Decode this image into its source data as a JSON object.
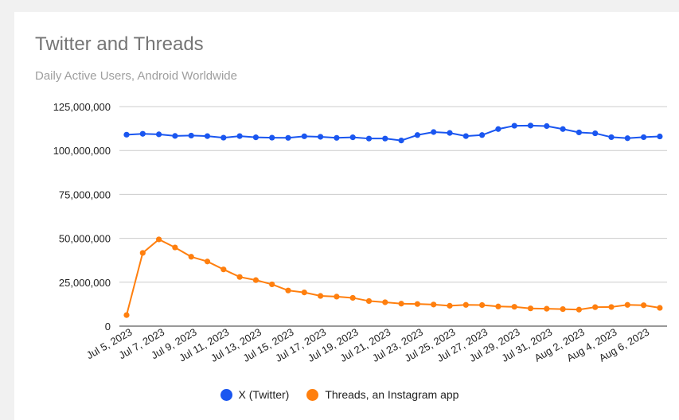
{
  "chart_data": {
    "type": "line",
    "title": "Twitter and Threads",
    "subtitle": "Daily Active Users, Android Worldwide",
    "xlabel": "",
    "ylabel": "",
    "ylim": [
      0,
      125000000
    ],
    "yticks": [
      "0",
      "25,000,000",
      "50,000,000",
      "75,000,000",
      "100,000,000",
      "125,000,000"
    ],
    "grid": true,
    "legend_position": "bottom",
    "categories": [
      "Jul 5, 2023",
      "Jul 6, 2023",
      "Jul 7, 2023",
      "Jul 8, 2023",
      "Jul 9, 2023",
      "Jul 10, 2023",
      "Jul 11, 2023",
      "Jul 12, 2023",
      "Jul 13, 2023",
      "Jul 14, 2023",
      "Jul 15, 2023",
      "Jul 16, 2023",
      "Jul 17, 2023",
      "Jul 18, 2023",
      "Jul 19, 2023",
      "Jul 20, 2023",
      "Jul 21, 2023",
      "Jul 22, 2023",
      "Jul 23, 2023",
      "Jul 24, 2023",
      "Jul 25, 2023",
      "Jul 26, 2023",
      "Jul 27, 2023",
      "Jul 28, 2023",
      "Jul 29, 2023",
      "Jul 30, 2023",
      "Jul 31, 2023",
      "Aug 1, 2023",
      "Aug 2, 2023",
      "Aug 3, 2023",
      "Aug 4, 2023",
      "Aug 5, 2023",
      "Aug 6, 2023",
      "Aug 7, 2023"
    ],
    "shown_tick_labels": [
      "Jul 5, 2023",
      "Jul 7, 2023",
      "Jul 9, 2023",
      "Jul 11, 2023",
      "Jul 13, 2023",
      "Jul 15, 2023",
      "Jul 17, 2023",
      "Jul 19, 2023",
      "Jul 21, 2023",
      "Jul 23, 2023",
      "Jul 25, 2023",
      "Jul 27, 2023",
      "Jul 29, 2023",
      "Jul 31, 2023",
      "Aug 2, 2023",
      "Aug 4, 2023",
      "Aug 6, 2023"
    ],
    "series": [
      {
        "name": "X (Twitter)",
        "color": "#1a56f0",
        "values": [
          109000000,
          109500000,
          109200000,
          108300000,
          108500000,
          108200000,
          107300000,
          108200000,
          107500000,
          107300000,
          107200000,
          108100000,
          107800000,
          107200000,
          107500000,
          106800000,
          106800000,
          105700000,
          108800000,
          110500000,
          110000000,
          108200000,
          108800000,
          112200000,
          114100000,
          114200000,
          113900000,
          112200000,
          110300000,
          109800000,
          107600000,
          107000000,
          107600000,
          108000000
        ]
      },
      {
        "name": "Threads, an Instagram app",
        "color": "#ff7f0e",
        "values": [
          6300000,
          41700000,
          49400000,
          44800000,
          39500000,
          36800000,
          32300000,
          28000000,
          26200000,
          23800000,
          20300000,
          19200000,
          17200000,
          16800000,
          16100000,
          14300000,
          13600000,
          12800000,
          12600000,
          12300000,
          11600000,
          12100000,
          12000000,
          11200000,
          11000000,
          10100000,
          9900000,
          9700000,
          9400000,
          10800000,
          10900000,
          12100000,
          11900000,
          10400000
        ]
      }
    ]
  }
}
